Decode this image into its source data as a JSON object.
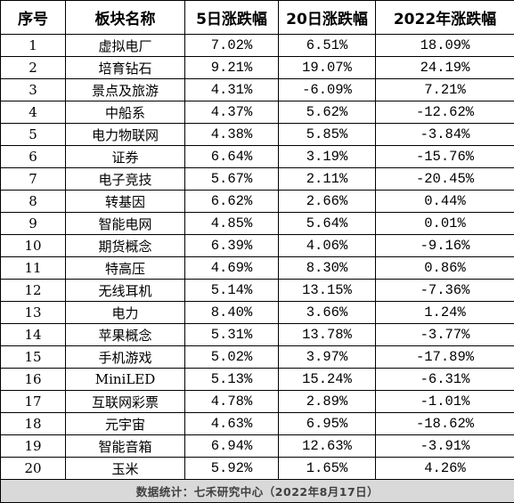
{
  "table": {
    "headers": [
      "序号",
      "板块名称",
      "5日涨跌幅",
      "20日涨跌幅",
      "2022年涨跌幅"
    ],
    "rows": [
      [
        "1",
        "虚拟电厂",
        "7.02%",
        "6.51%",
        "18.09%"
      ],
      [
        "2",
        "培育钻石",
        "9.21%",
        "19.07%",
        "24.19%"
      ],
      [
        "3",
        "景点及旅游",
        "4.31%",
        "-6.09%",
        "7.21%"
      ],
      [
        "4",
        "中船系",
        "4.37%",
        "5.62%",
        "-12.62%"
      ],
      [
        "5",
        "电力物联网",
        "4.38%",
        "5.85%",
        "-3.84%"
      ],
      [
        "6",
        "证券",
        "6.64%",
        "3.19%",
        "-15.76%"
      ],
      [
        "7",
        "电子竞技",
        "5.67%",
        "2.11%",
        "-20.45%"
      ],
      [
        "8",
        "转基因",
        "6.62%",
        "2.66%",
        "0.44%"
      ],
      [
        "9",
        "智能电网",
        "4.85%",
        "5.64%",
        "0.01%"
      ],
      [
        "10",
        "期货概念",
        "6.39%",
        "4.06%",
        "-9.16%"
      ],
      [
        "11",
        "特高压",
        "4.69%",
        "8.30%",
        "0.86%"
      ],
      [
        "12",
        "无线耳机",
        "5.14%",
        "13.15%",
        "-7.36%"
      ],
      [
        "13",
        "电力",
        "8.40%",
        "3.66%",
        "1.24%"
      ],
      [
        "14",
        "苹果概念",
        "5.31%",
        "13.78%",
        "-3.77%"
      ],
      [
        "15",
        "手机游戏",
        "5.02%",
        "3.97%",
        "-17.89%"
      ],
      [
        "16",
        "MiniLED",
        "5.13%",
        "15.24%",
        "-6.31%"
      ],
      [
        "17",
        "互联网彩票",
        "4.78%",
        "2.89%",
        "-1.01%"
      ],
      [
        "18",
        "元宇宙",
        "4.63%",
        "6.95%",
        "-18.62%"
      ],
      [
        "19",
        "智能音箱",
        "6.94%",
        "12.63%",
        "-3.91%"
      ],
      [
        "20",
        "玉米",
        "5.92%",
        "1.65%",
        "4.26%"
      ]
    ],
    "footer": "数据统计：七禾研究中心（2022年8月17日）"
  },
  "colors": {
    "border": "#000000",
    "footer_background": "#d9d9d9",
    "footer_text": "#404040"
  }
}
